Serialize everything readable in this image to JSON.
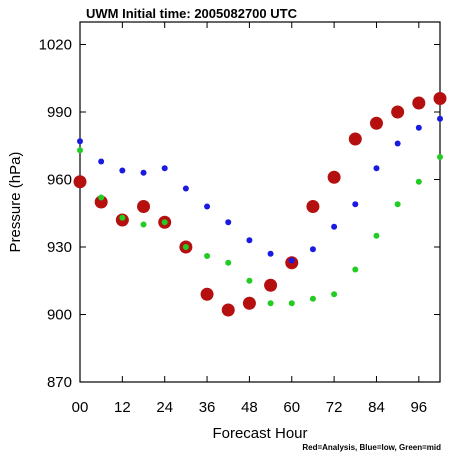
{
  "chart_data": {
    "type": "scatter",
    "title": "UWM Initial time: 2005082700 UTC",
    "xlabel": "Forecast Hour",
    "ylabel": "Pressure (hPa)",
    "note": "Red=Analysis, Blue=low, Green=mid",
    "xlim": [
      0,
      102
    ],
    "ylim": [
      870,
      1030
    ],
    "x_ticks": [
      0,
      12,
      24,
      36,
      48,
      60,
      72,
      84,
      96
    ],
    "x_tick_labels": [
      "00",
      "12",
      "24",
      "36",
      "48",
      "60",
      "72",
      "84",
      "96"
    ],
    "y_ticks": [
      870,
      900,
      930,
      960,
      990,
      1020
    ],
    "y_tick_labels": [
      "870",
      "900",
      "930",
      "960",
      "990",
      "1020"
    ],
    "grid": false,
    "series": [
      {
        "name": "Analysis",
        "color": "#b50f0f",
        "marker_size": "large",
        "x": [
          0,
          6,
          12,
          18,
          24,
          30,
          36,
          42,
          48,
          54,
          60,
          66,
          72,
          78,
          84,
          90,
          96,
          102
        ],
        "y": [
          959,
          950,
          942,
          948,
          941,
          930,
          909,
          902,
          905,
          913,
          923,
          948,
          961,
          978,
          985,
          990,
          994,
          996
        ]
      },
      {
        "name": "low",
        "color": "#1a1ae0",
        "marker_size": "small",
        "x": [
          0,
          6,
          12,
          18,
          24,
          30,
          36,
          42,
          48,
          54,
          60,
          66,
          72,
          78,
          84,
          90,
          96,
          102
        ],
        "y": [
          977,
          968,
          964,
          963,
          965,
          956,
          948,
          941,
          933,
          927,
          924,
          929,
          939,
          949,
          965,
          976,
          983,
          987
        ]
      },
      {
        "name": "mid",
        "color": "#22cc22",
        "marker_size": "small",
        "x": [
          0,
          6,
          12,
          18,
          24,
          30,
          36,
          42,
          48,
          54,
          60,
          66,
          72,
          78,
          84,
          90,
          96,
          102
        ],
        "y": [
          973,
          952,
          943,
          940,
          941,
          930,
          926,
          923,
          915,
          905,
          905,
          907,
          909,
          920,
          935,
          949,
          959,
          970
        ]
      }
    ]
  }
}
